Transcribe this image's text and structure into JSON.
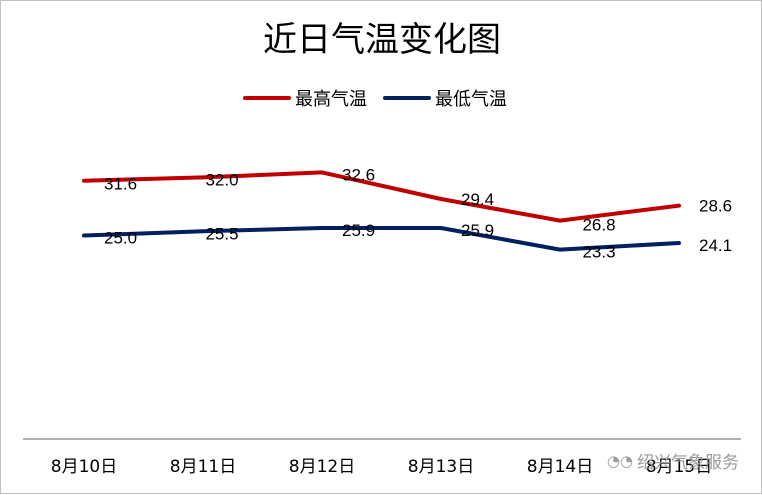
{
  "chart_data": {
    "type": "line",
    "title": "近日气温变化图",
    "categories": [
      "8月10日",
      "8月11日",
      "8月12日",
      "8月13日",
      "8月14日",
      "8月15日"
    ],
    "series": [
      {
        "name": "最高气温",
        "color": "#c00000",
        "values": [
          31.6,
          32.0,
          32.6,
          29.4,
          26.8,
          28.6
        ]
      },
      {
        "name": "最低气温",
        "color": "#002060",
        "values": [
          25.0,
          25.5,
          25.9,
          25.9,
          23.3,
          24.1
        ]
      }
    ],
    "data_labels": {
      "high": [
        "31.6",
        "32.0",
        "32.6",
        "29.4",
        "26.8",
        "28.6"
      ],
      "low": [
        "25.0",
        "25.5",
        "25.9",
        "25.9",
        "23.3",
        "24.1"
      ]
    },
    "legend": "top",
    "grid": false,
    "xlabel": "",
    "ylabel": ""
  },
  "watermark": {
    "icon": "wechat-icon",
    "text": "绍兴气象服务"
  }
}
